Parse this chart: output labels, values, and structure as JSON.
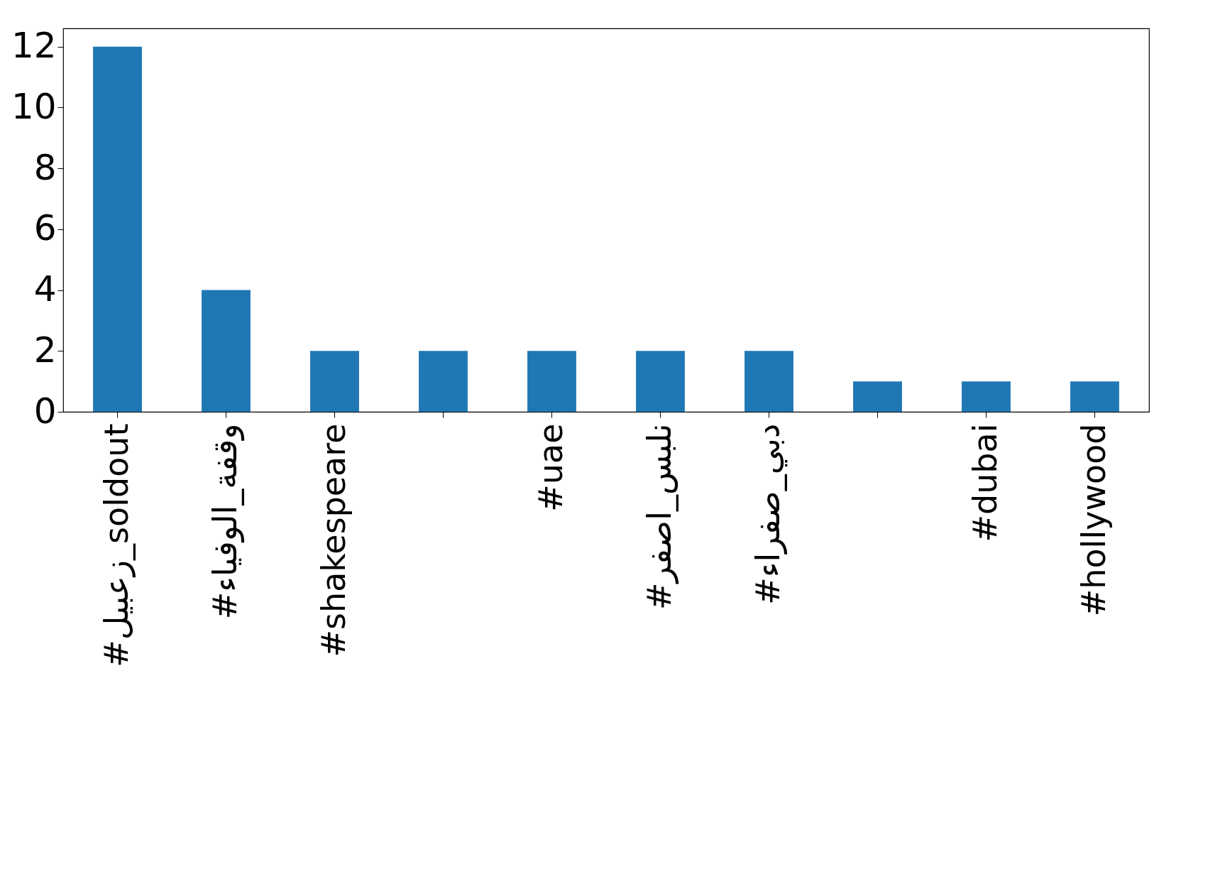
{
  "chart_data": {
    "type": "bar",
    "categories": [
      "#زعبيل_soldout",
      "#وقفة_الوفياء",
      "#shakespeare",
      null,
      "#uae",
      "#نلبس_اصفر",
      "#دبي_صفراء",
      null,
      "#dubai",
      "#hollywood"
    ],
    "values": [
      12,
      4,
      2,
      2,
      2,
      2,
      2,
      1,
      1,
      1
    ],
    "color": "#1f77b4",
    "ylim": [
      0,
      12.6
    ],
    "yticks": [
      0,
      2,
      4,
      6,
      8,
      10,
      12
    ],
    "grid": false
  }
}
